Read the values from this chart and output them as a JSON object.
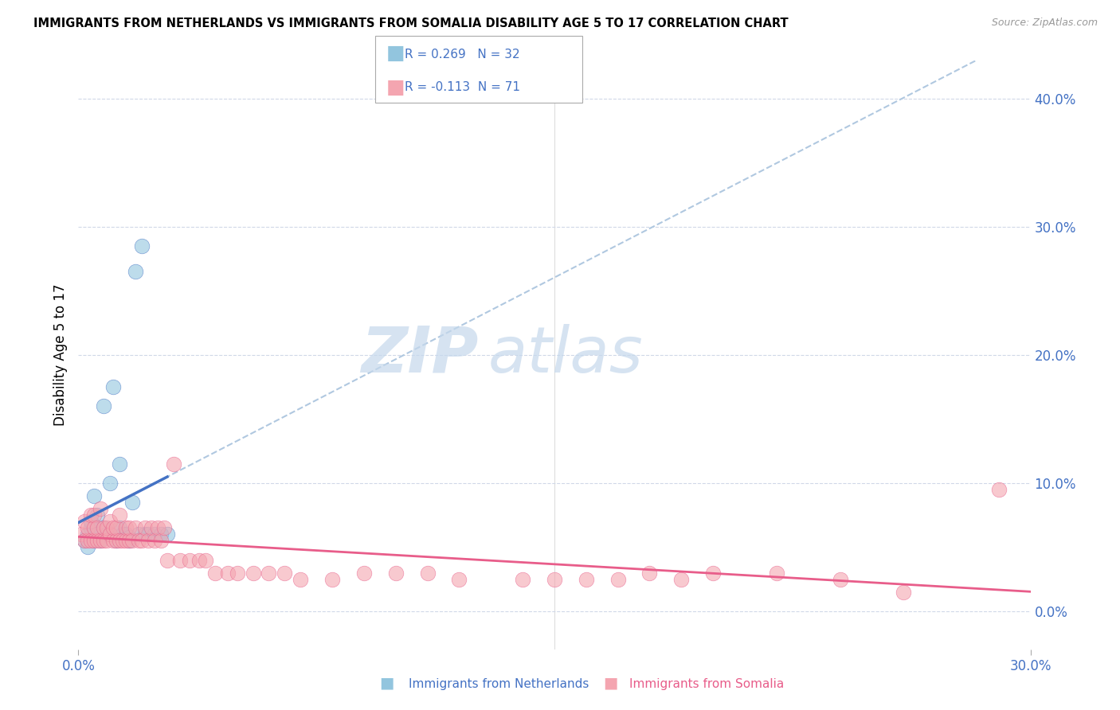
{
  "title": "IMMIGRANTS FROM NETHERLANDS VS IMMIGRANTS FROM SOMALIA DISABILITY AGE 5 TO 17 CORRELATION CHART",
  "source": "Source: ZipAtlas.com",
  "ylabel": "Disability Age 5 to 17",
  "netherlands_R": 0.269,
  "netherlands_N": 32,
  "somalia_R": -0.113,
  "somalia_N": 71,
  "netherlands_color": "#92c5de",
  "somalia_color": "#f4a5b0",
  "netherlands_line_color": "#4472c4",
  "somalia_line_color": "#e85d8a",
  "dashed_color": "#b0c8e0",
  "watermark": "ZIPatlas",
  "watermark_color": "#c5d8ec",
  "xlim": [
    0.0,
    0.3
  ],
  "ylim": [
    -0.03,
    0.43
  ],
  "netherlands_x": [
    0.002,
    0.003,
    0.003,
    0.004,
    0.004,
    0.005,
    0.005,
    0.006,
    0.006,
    0.007,
    0.008,
    0.008,
    0.009,
    0.01,
    0.01,
    0.011,
    0.012,
    0.013,
    0.013,
    0.014,
    0.015,
    0.016,
    0.016,
    0.017,
    0.018,
    0.019,
    0.02,
    0.021,
    0.022,
    0.024,
    0.026,
    0.028
  ],
  "netherlands_y": [
    0.055,
    0.06,
    0.05,
    0.065,
    0.07,
    0.055,
    0.09,
    0.06,
    0.075,
    0.055,
    0.065,
    0.16,
    0.06,
    0.1,
    0.06,
    0.175,
    0.055,
    0.065,
    0.115,
    0.06,
    0.06,
    0.058,
    0.055,
    0.085,
    0.265,
    0.06,
    0.285,
    0.06,
    0.06,
    0.06,
    0.06,
    0.06
  ],
  "somalia_x": [
    0.001,
    0.002,
    0.002,
    0.003,
    0.003,
    0.004,
    0.004,
    0.005,
    0.005,
    0.005,
    0.006,
    0.006,
    0.007,
    0.007,
    0.008,
    0.008,
    0.009,
    0.009,
    0.01,
    0.01,
    0.011,
    0.011,
    0.012,
    0.012,
    0.013,
    0.013,
    0.014,
    0.015,
    0.015,
    0.016,
    0.016,
    0.017,
    0.018,
    0.019,
    0.02,
    0.021,
    0.022,
    0.023,
    0.024,
    0.025,
    0.026,
    0.027,
    0.028,
    0.03,
    0.032,
    0.035,
    0.038,
    0.04,
    0.043,
    0.047,
    0.05,
    0.055,
    0.06,
    0.065,
    0.07,
    0.08,
    0.09,
    0.1,
    0.11,
    0.12,
    0.14,
    0.15,
    0.16,
    0.17,
    0.18,
    0.19,
    0.2,
    0.22,
    0.24,
    0.26,
    0.29
  ],
  "somalia_y": [
    0.06,
    0.055,
    0.07,
    0.055,
    0.065,
    0.055,
    0.075,
    0.055,
    0.065,
    0.075,
    0.055,
    0.065,
    0.055,
    0.08,
    0.055,
    0.065,
    0.055,
    0.065,
    0.06,
    0.07,
    0.055,
    0.065,
    0.055,
    0.065,
    0.055,
    0.075,
    0.055,
    0.055,
    0.065,
    0.055,
    0.065,
    0.055,
    0.065,
    0.055,
    0.055,
    0.065,
    0.055,
    0.065,
    0.055,
    0.065,
    0.055,
    0.065,
    0.04,
    0.115,
    0.04,
    0.04,
    0.04,
    0.04,
    0.03,
    0.03,
    0.03,
    0.03,
    0.03,
    0.03,
    0.025,
    0.025,
    0.03,
    0.03,
    0.03,
    0.025,
    0.025,
    0.025,
    0.025,
    0.025,
    0.03,
    0.025,
    0.03,
    0.03,
    0.025,
    0.015,
    0.095
  ]
}
